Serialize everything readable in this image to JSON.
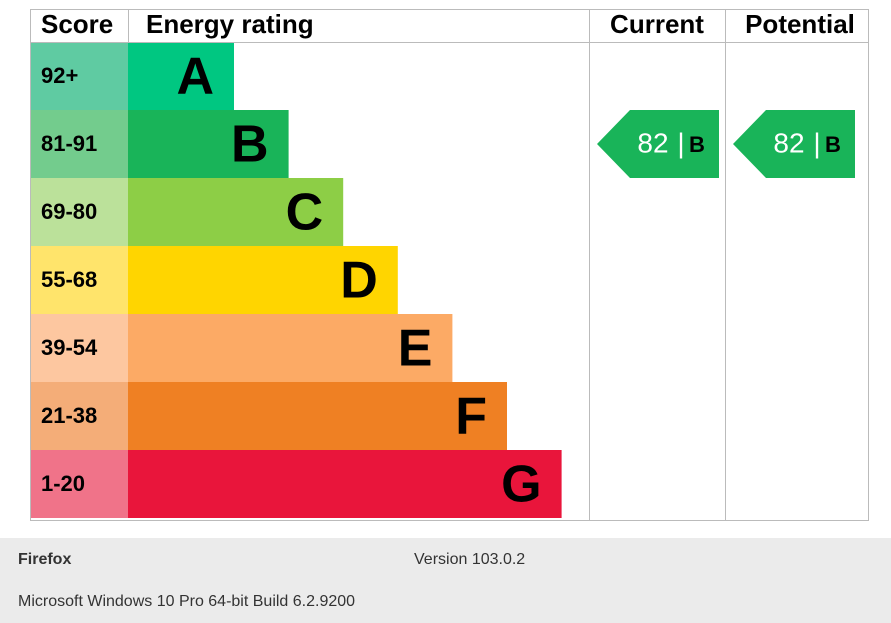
{
  "header": {
    "score": "Score",
    "rating": "Energy rating",
    "current": "Current",
    "potential": "Potential"
  },
  "bands": [
    {
      "score": "92+",
      "letter": "A",
      "color": "#00c781",
      "score_color": "#5fcba2"
    },
    {
      "score": "81-91",
      "letter": "B",
      "color": "#19b459",
      "score_color": "#73cc8d"
    },
    {
      "score": "69-80",
      "letter": "C",
      "color": "#8dce46",
      "score_color": "#bbe19a"
    },
    {
      "score": "55-68",
      "letter": "D",
      "color": "#ffd500",
      "score_color": "#ffe46b"
    },
    {
      "score": "39-54",
      "letter": "E",
      "color": "#fcaa65",
      "score_color": "#fdc7a0"
    },
    {
      "score": "21-38",
      "letter": "F",
      "color": "#ef8023",
      "score_color": "#f4ad78"
    },
    {
      "score": "1-20",
      "letter": "G",
      "color": "#e9153b",
      "score_color": "#f07389"
    }
  ],
  "current": {
    "value": 82,
    "separator": "|",
    "letter": "B"
  },
  "potential": {
    "value": 82,
    "separator": "|",
    "letter": "B"
  },
  "footer": {
    "browser": "Firefox",
    "version": "Version 103.0.2",
    "os": "Microsoft Windows 10 Pro 64-bit Build 6.2.9200"
  }
}
